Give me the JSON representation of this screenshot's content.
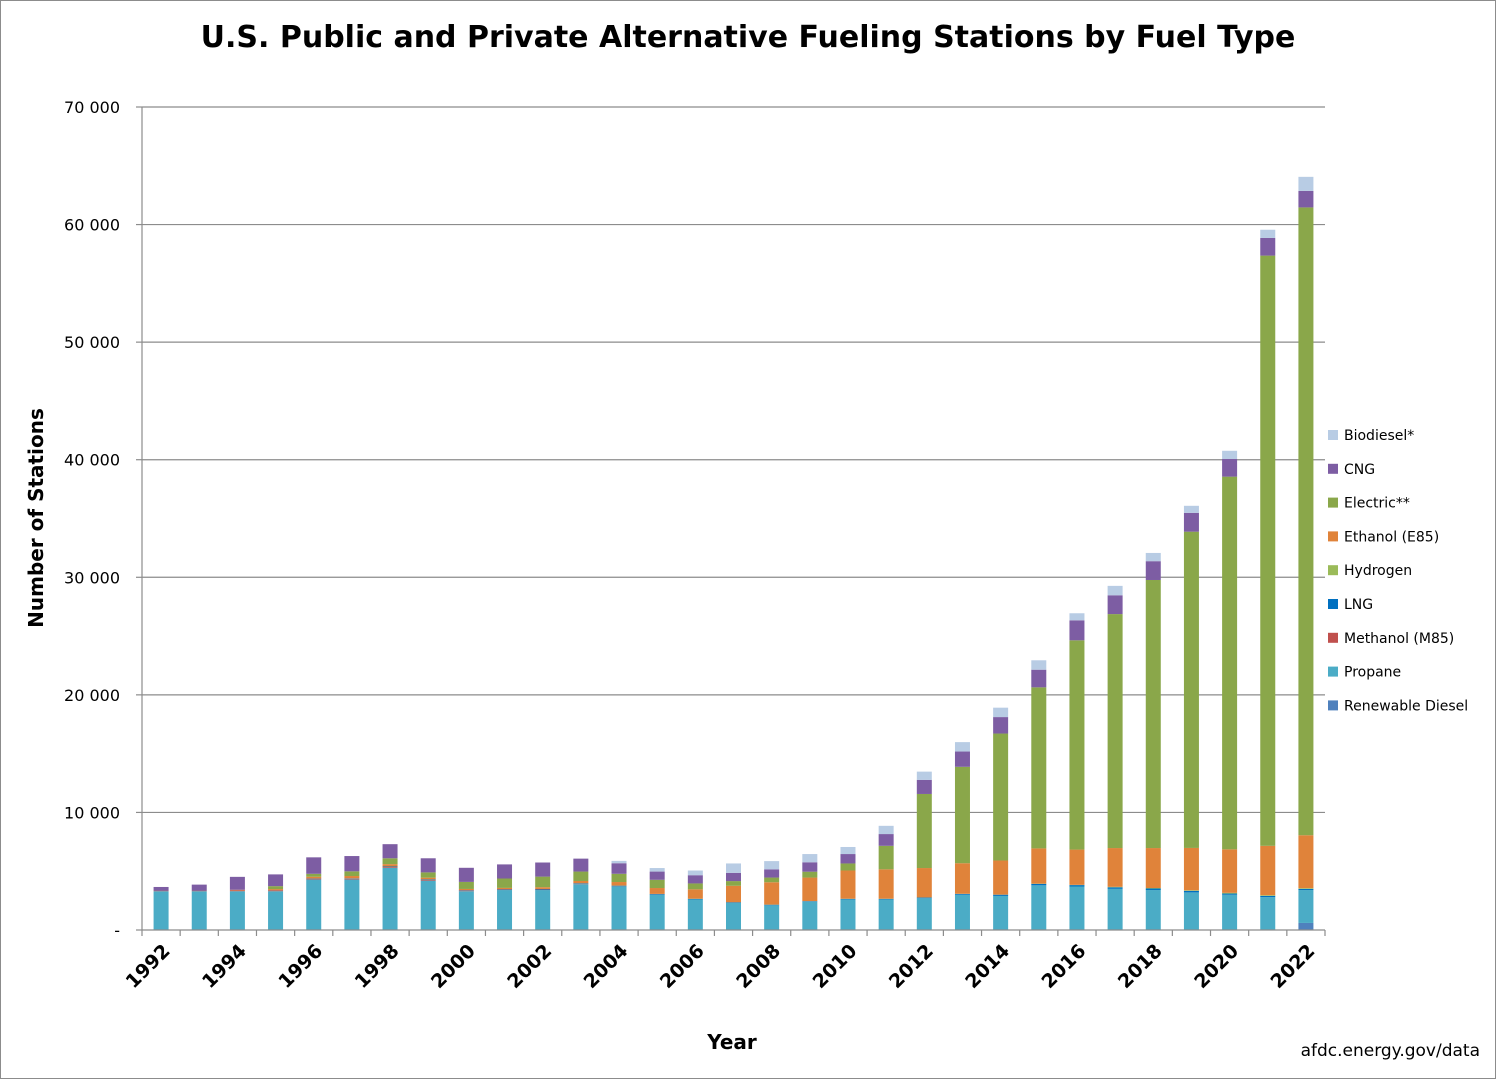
{
  "source_note": "afdc.energy.gov/data",
  "chart_data": {
    "type": "bar",
    "stacked": true,
    "title": "U.S. Public and Private Alternative Fueling Stations by Fuel Type",
    "xlabel": "Year",
    "ylabel": "Number of Stations",
    "ylim": [
      0,
      70000
    ],
    "yticks": [
      0,
      10000,
      20000,
      30000,
      40000,
      50000,
      60000,
      70000
    ],
    "ytick_labels": [
      "-",
      "10 000",
      "20 000",
      "30 000",
      "40 000",
      "50 000",
      "60 000",
      "70 000"
    ],
    "grid": true,
    "legend_position": "right",
    "categories": [
      "1992",
      "1993",
      "1994",
      "1995",
      "1996",
      "1997",
      "1998",
      "1999",
      "2000",
      "2001",
      "2002",
      "2003",
      "2004",
      "2005",
      "2006",
      "2007",
      "2008",
      "2009",
      "2010",
      "2011",
      "2012",
      "2013",
      "2014",
      "2015",
      "2016",
      "2017",
      "2018",
      "2019",
      "2020",
      "2021",
      "2022"
    ],
    "xtick_labels": [
      "1992",
      "",
      "1994",
      "",
      "1996",
      "",
      "1998",
      "",
      "2000",
      "",
      "2002",
      "",
      "2004",
      "",
      "2006",
      "",
      "2008",
      "",
      "2010",
      "",
      "2012",
      "",
      "2014",
      "",
      "2016",
      "",
      "2018",
      "",
      "2020",
      "",
      "2022"
    ],
    "series": [
      {
        "name": "Renewable Diesel",
        "color": "#4f81bd",
        "values": [
          0,
          0,
          0,
          0,
          0,
          0,
          0,
          0,
          0,
          0,
          0,
          0,
          0,
          0,
          0,
          0,
          0,
          0,
          0,
          0,
          0,
          0,
          0,
          0,
          0,
          0,
          0,
          0,
          0,
          0,
          600
        ]
      },
      {
        "name": "Propane",
        "color": "#4bacc6",
        "values": [
          3300,
          3300,
          3300,
          3300,
          4300,
          4300,
          5300,
          4200,
          3300,
          3400,
          3400,
          3900,
          3700,
          3000,
          2600,
          2300,
          2100,
          2400,
          2600,
          2600,
          2700,
          3000,
          2900,
          3800,
          3700,
          3500,
          3400,
          3200,
          3000,
          2800,
          2800
        ]
      },
      {
        "name": "Methanol (M85)",
        "color": "#c0504d",
        "values": [
          50,
          50,
          60,
          60,
          60,
          60,
          60,
          60,
          50,
          40,
          40,
          20,
          20,
          10,
          0,
          0,
          0,
          0,
          0,
          0,
          0,
          0,
          0,
          0,
          0,
          0,
          0,
          0,
          0,
          0,
          0
        ]
      },
      {
        "name": "LNG",
        "color": "#0070c0",
        "values": [
          10,
          10,
          10,
          20,
          20,
          30,
          40,
          40,
          40,
          40,
          50,
          50,
          50,
          50,
          50,
          50,
          50,
          50,
          50,
          50,
          60,
          70,
          100,
          120,
          120,
          130,
          130,
          130,
          100,
          100,
          100
        ]
      },
      {
        "name": "Hydrogen",
        "color": "#9bbb59",
        "values": [
          0,
          0,
          0,
          0,
          0,
          0,
          0,
          0,
          0,
          0,
          0,
          0,
          10,
          10,
          10,
          10,
          10,
          10,
          10,
          10,
          10,
          10,
          10,
          20,
          20,
          40,
          40,
          50,
          60,
          60,
          60
        ]
      },
      {
        "name": "Ethanol (E85)",
        "color": "#e0833a",
        "values": [
          0,
          0,
          50,
          100,
          150,
          200,
          200,
          150,
          100,
          100,
          150,
          200,
          300,
          500,
          800,
          1400,
          1900,
          2000,
          2400,
          2500,
          2500,
          2600,
          2900,
          3000,
          3000,
          3300,
          3400,
          3600,
          3700,
          4200,
          4500
        ]
      },
      {
        "name": "Electric**",
        "color": "#8aa74a",
        "values": [
          0,
          0,
          0,
          250,
          250,
          400,
          500,
          450,
          600,
          800,
          900,
          800,
          700,
          700,
          500,
          400,
          400,
          500,
          600,
          2000,
          6300,
          8200,
          10800,
          13700,
          17800,
          19900,
          22800,
          26900,
          31700,
          50200,
          53400
        ]
      },
      {
        "name": "CNG",
        "color": "#7d5da3",
        "values": [
          300,
          500,
          1100,
          1000,
          1400,
          1300,
          1200,
          1200,
          1200,
          1200,
          1200,
          1100,
          900,
          700,
          700,
          700,
          700,
          800,
          800,
          1000,
          1200,
          1300,
          1400,
          1500,
          1700,
          1600,
          1600,
          1600,
          1500,
          1500,
          1400
        ]
      },
      {
        "name": "Biodiesel*",
        "color": "#b8cce4",
        "values": [
          0,
          0,
          0,
          0,
          0,
          0,
          0,
          0,
          0,
          0,
          0,
          0,
          200,
          300,
          400,
          800,
          700,
          700,
          600,
          700,
          700,
          800,
          800,
          800,
          600,
          800,
          700,
          600,
          700,
          700,
          1200
        ]
      }
    ],
    "legend_order": [
      "Biodiesel*",
      "CNG",
      "Electric**",
      "Ethanol (E85)",
      "Hydrogen",
      "LNG",
      "Methanol (M85)",
      "Propane",
      "Renewable Diesel"
    ]
  }
}
